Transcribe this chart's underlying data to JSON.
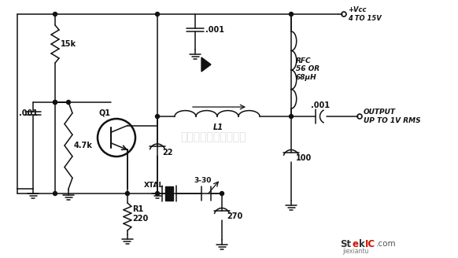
{
  "bg_color": "#ffffff",
  "line_color": "#111111",
  "watermark_text": "杭州将睿科技有限公司",
  "watermark_color": "#c8c8c8",
  "components": {
    "vcc_label": "+Vcc\n4 TO 15V",
    "rfc_label": "RFC\n56 OR\n68μH",
    "output_label": "OUTPUT\nUP TO 1V RMS",
    "transistor_label": "Q1",
    "xtal_label": "XTAL",
    "var_cap_label": "3-30",
    "r1_label": "R1\n220",
    "r_15k_label": "15k",
    "r_47k_label": "4.7k",
    "c_001_1_label": ".001",
    "c_001_2_label": ".001",
    "c_001_3_label": ".001",
    "c_22_label": "22",
    "c_100_label": "100",
    "c_270_label": "270",
    "l1_label": "L1"
  }
}
